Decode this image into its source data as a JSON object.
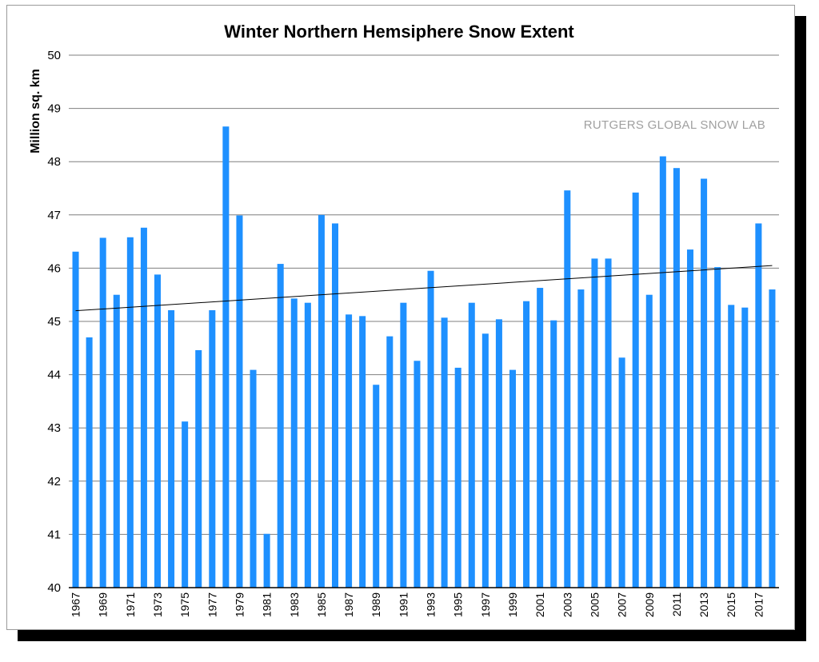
{
  "chart_data": {
    "type": "bar",
    "title": "Winter Northern Hemsiphere Snow Extent",
    "ylabel": "Million sq. km",
    "xlabel": "",
    "watermark": "RUTGERS GLOBAL SNOW LAB",
    "ylim": [
      40,
      50
    ],
    "yticks": [
      40,
      41,
      42,
      43,
      44,
      45,
      46,
      47,
      48,
      49,
      50
    ],
    "grid": true,
    "bar_color": "#1e90ff",
    "trendline_color": "#000000",
    "categories": [
      "1967",
      "1968",
      "1969",
      "1970",
      "1971",
      "1972",
      "1973",
      "1974",
      "1975",
      "1976",
      "1977",
      "1978",
      "1979",
      "1980",
      "1981",
      "1982",
      "1983",
      "1984",
      "1985",
      "1986",
      "1987",
      "1988",
      "1989",
      "1990",
      "1991",
      "1992",
      "1993",
      "1994",
      "1995",
      "1996",
      "1997",
      "1998",
      "1999",
      "2000",
      "2001",
      "2002",
      "2003",
      "2004",
      "2005",
      "2006",
      "2007",
      "2008",
      "2009",
      "2010",
      "2011",
      "2012",
      "2013",
      "2014",
      "2015",
      "2016",
      "2017",
      "2018"
    ],
    "x_tick_labels": [
      "1967",
      "1969",
      "1971",
      "1973",
      "1975",
      "1977",
      "1979",
      "1981",
      "1983",
      "1985",
      "1987",
      "1989",
      "1991",
      "1993",
      "1995",
      "1997",
      "1999",
      "2001",
      "2003",
      "2005",
      "2007",
      "2009",
      "2011",
      "2013",
      "2015",
      "2017"
    ],
    "values": [
      46.31,
      44.7,
      46.57,
      45.5,
      46.58,
      46.76,
      45.88,
      45.21,
      43.12,
      44.46,
      45.21,
      48.66,
      46.99,
      44.09,
      41.01,
      46.08,
      45.43,
      45.35,
      47.0,
      46.84,
      45.13,
      45.1,
      43.81,
      44.72,
      45.35,
      44.26,
      45.95,
      45.07,
      44.13,
      45.35,
      44.77,
      45.04,
      44.09,
      45.38,
      45.63,
      45.02,
      47.46,
      45.6,
      46.18,
      46.18,
      44.32,
      47.42,
      45.5,
      48.1,
      47.88,
      46.35,
      47.68,
      46.02,
      45.31,
      45.26,
      46.84,
      45.6
    ],
    "trendline": {
      "start": 45.2,
      "end": 46.05
    }
  }
}
